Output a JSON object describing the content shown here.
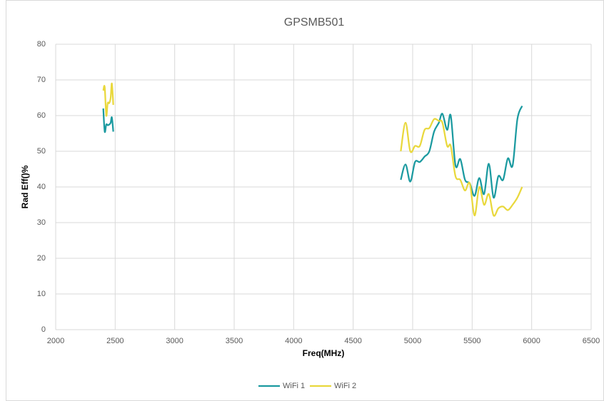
{
  "chart_data": {
    "type": "line",
    "title": "GPSMB501",
    "x_label": "Freq(MHz)",
    "y_label": "Rad Eff()%",
    "xlim": [
      2000,
      6500
    ],
    "xticks": [
      2000,
      2500,
      3000,
      3500,
      4000,
      4500,
      5000,
      5500,
      6000,
      6500
    ],
    "ylim": [
      0,
      80
    ],
    "yticks": [
      0,
      10,
      20,
      30,
      40,
      50,
      60,
      70,
      80
    ],
    "grid": true,
    "legend": "bottom",
    "smooth": true,
    "series": [
      {
        "name": "WiFi 1",
        "color": "#1b9aa0",
        "x": [
          2400,
          2412,
          2425,
          2437,
          2450,
          2462,
          2472,
          2484,
          null,
          4900,
          4940,
          4980,
          5020,
          5060,
          5100,
          5140,
          5180,
          5220,
          5250,
          5290,
          5320,
          5360,
          5400,
          5440,
          5480,
          5520,
          5560,
          5600,
          5640,
          5680,
          5720,
          5760,
          5800,
          5840,
          5880,
          5920
        ],
        "values": [
          62,
          55.5,
          57.5,
          57.3,
          57.5,
          58,
          59.5,
          55.5,
          null,
          42,
          46.3,
          41.5,
          47,
          47,
          48.5,
          50,
          55.5,
          58,
          60.5,
          56,
          60,
          46,
          47.8,
          42,
          41,
          37.5,
          42.5,
          38,
          46.5,
          37,
          43,
          42,
          48,
          46,
          59,
          62.7
        ]
      },
      {
        "name": "WiFi 2",
        "color": "#e9d83c",
        "x": [
          2400,
          2412,
          2425,
          2437,
          2450,
          2462,
          2472,
          2484,
          null,
          4900,
          4940,
          4980,
          5020,
          5060,
          5100,
          5140,
          5180,
          5220,
          5250,
          5290,
          5320,
          5360,
          5400,
          5440,
          5480,
          5520,
          5560,
          5600,
          5640,
          5680,
          5720,
          5760,
          5800,
          5840,
          5880,
          5920
        ],
        "values": [
          67,
          68,
          60,
          63.5,
          63.5,
          65,
          69,
          63,
          null,
          50,
          58,
          50,
          51.5,
          51.5,
          56,
          56.5,
          59,
          58.5,
          58,
          51.5,
          51.5,
          43,
          42,
          39,
          41,
          32,
          40,
          35,
          38,
          32,
          34,
          34.5,
          33.5,
          35,
          37,
          40
        ]
      }
    ]
  }
}
